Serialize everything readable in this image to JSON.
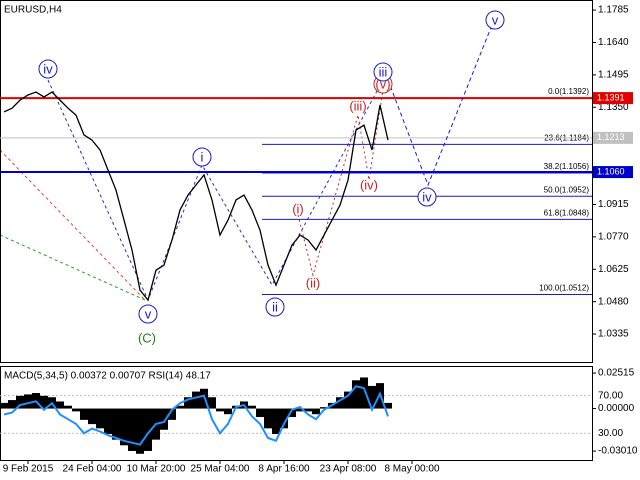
{
  "chart_data": [
    {
      "type": "line",
      "title": "EURUSD,H4",
      "categories": [
        null,
        null,
        null,
        "9 Feb 2015",
        null,
        null,
        null,
        null,
        null,
        null,
        null,
        "24 Feb 04:00",
        null,
        null,
        null,
        null,
        null,
        null,
        null,
        "10 Mar 20:00",
        null,
        null,
        null,
        null,
        null,
        null,
        null,
        "25 Mar 04:00",
        null,
        null,
        null,
        null,
        null,
        null,
        null,
        "8 Apr 16:00",
        null,
        null,
        null,
        null,
        null,
        null,
        null,
        "23 Apr 08:00",
        null,
        null,
        null,
        null,
        null,
        null,
        null,
        "8 May 00:00",
        null,
        null,
        null,
        null,
        null,
        null,
        null,
        null,
        null,
        null
      ],
      "series": [
        {
          "color": "#000000",
          "values": [
            1.1329,
            1.1346,
            1.1382,
            1.1405,
            1.1418,
            1.1396,
            1.1418,
            1.1382,
            1.1346,
            1.1315,
            1.1226,
            1.1203,
            1.1159,
            1.1069,
            1.0979,
            1.0845,
            1.0711,
            1.0532,
            1.0487,
            1.0621,
            1.0644,
            1.0756,
            1.089,
            1.0957,
            1.1002,
            1.1047,
            1.0935,
            1.0778,
            1.0845,
            1.0935,
            1.0957,
            1.089,
            1.08,
            1.0644,
            1.0554,
            1.0644,
            1.0733,
            1.0778,
            1.0756,
            1.0711,
            1.0778,
            1.0845,
            1.0912,
            1.1024,
            1.1248,
            1.127,
            1.1159,
            1.136,
            1.1203,
            null,
            null,
            null,
            null,
            null,
            null,
            null,
            null,
            null,
            null,
            null,
            null,
            null
          ]
        },
        {
          "color": "#1a1acc",
          "x": [
            48,
            53,
            61
          ],
          "values": [
            1.1472,
            1.1002,
            1.1718
          ]
        }
      ],
      "ylim": [
        1.021,
        1.183
      ],
      "yticks": [
        1.1785,
        {
          "value": 1.164,
          "label": "1.1640"
        },
        1.1495,
        {
          "value": 1.135,
          "label": "1.1350"
        },
        1.1205,
        {
          "value": 1.106,
          "label": "1.1060"
        },
        1.0915,
        {
          "value": 1.077,
          "label": "1.0770"
        },
        1.0625,
        {
          "value": 1.048,
          "label": "1.0480"
        },
        1.0335
      ],
      "levels": [
        {
          "value": 1.1391,
          "color": "#e00000"
        },
        {
          "value": 1.1213,
          "color": "#c0c0c0"
        },
        {
          "value": 1.106,
          "label": "1.1060",
          "color": "#0000cc"
        }
      ],
      "fibonacci": [
        {
          "value": 1.1392,
          "label": "0.0(1.1392)"
        },
        {
          "value": 1.1184,
          "label": "23.6(1.1184)"
        },
        {
          "value": 1.1056,
          "label": "38.2(1.1056)"
        },
        {
          "value": 1.0952,
          "label": "50.0(1.0952)"
        },
        {
          "value": 1.0848,
          "label": "61.8(1.0848)"
        },
        {
          "value": 1.0512,
          "label": "100.0(1.0512)"
        }
      ],
      "annotations": [
        "iv",
        "v",
        "(C)",
        "i",
        "ii",
        "(i)",
        "(ii)",
        "(iii)",
        "(iv)",
        "(v)",
        "iii",
        "iv",
        "v"
      ]
    },
    {
      "type": "macd-rsi",
      "title": "MACD(5,34,5) 0.00372 0.00707 RSI(14) 48.17",
      "series": [
        {
          "type": "bar",
          "color": "#000000",
          "values": [
            0.004,
            0.006,
            0.009,
            0.01,
            0.011,
            0.009,
            0.008,
            0.005,
            0.002,
            -0.002,
            -0.008,
            -0.011,
            -0.014,
            -0.018,
            -0.022,
            -0.026,
            -0.03,
            -0.032,
            -0.03,
            -0.022,
            -0.015,
            -0.008,
            0.002,
            0.008,
            0.012,
            0.014,
            0.008,
            -0.002,
            -0.004,
            0.002,
            0.005,
            0.002,
            -0.006,
            -0.014,
            -0.018,
            -0.014,
            -0.006,
            -0.002,
            -0.002,
            -0.004,
            0.001,
            0.004,
            0.008,
            0.012,
            0.02,
            0.022,
            0.016,
            0.018,
            0.004,
            null,
            null,
            null,
            null,
            null,
            null,
            null,
            null,
            null,
            null,
            null,
            null,
            null
          ]
        },
        {
          "type": "line",
          "color": "#1e90ff",
          "axis": "y2",
          "values": [
            50,
            52,
            60,
            62,
            64,
            55,
            62,
            50,
            45,
            40,
            30,
            35,
            32,
            28,
            25,
            22,
            20,
            18,
            30,
            40,
            42,
            55,
            62,
            66,
            68,
            70,
            45,
            30,
            40,
            58,
            60,
            48,
            40,
            25,
            22,
            40,
            55,
            58,
            50,
            45,
            55,
            60,
            65,
            70,
            80,
            78,
            55,
            72,
            48,
            null,
            null,
            null,
            null,
            null,
            null,
            null,
            null,
            null,
            null,
            null,
            null,
            null
          ]
        }
      ],
      "ylim": [
        -0.0364,
        0.0294
      ],
      "yticks": [
        0.02515,
        {
          "value": 0,
          "label": "0.00000"
        },
        {
          "value": -0.0301,
          "label": "-0.03010"
        }
      ],
      "y2lim": [
        1.6,
        100.5
      ],
      "y2ticks": [
        {
          "value": 70,
          "label": "70.00"
        },
        {
          "value": 30,
          "label": "30.00"
        }
      ]
    }
  ]
}
